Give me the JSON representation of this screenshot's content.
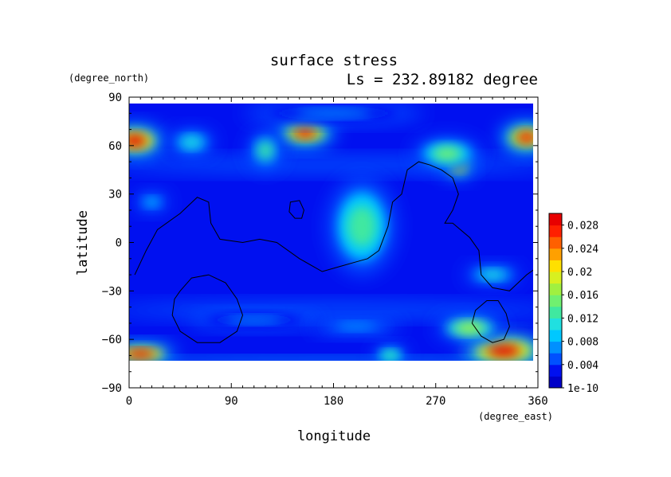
{
  "chart_data": {
    "type": "heatmap",
    "title": "surface stress",
    "subtitle": "Ls = 232.89182 degree",
    "xlabel": "longitude",
    "ylabel": "latitude",
    "x_unit": "(degree_east)",
    "y_unit": "(degree_north)",
    "xlim": [
      0,
      360
    ],
    "ylim": [
      -90,
      90
    ],
    "x_ticks": [
      "0",
      "90",
      "180",
      "270",
      "360"
    ],
    "y_ticks": [
      "90",
      "60",
      "30",
      "0",
      "−30",
      "−60",
      "−90"
    ],
    "x_tick_values": [
      0,
      90,
      180,
      270,
      360
    ],
    "y_tick_values": [
      90,
      60,
      30,
      0,
      -30,
      -60,
      -90
    ],
    "colorbar": {
      "labels": [
        "0.028",
        "0.024",
        "0.02",
        "0.016",
        "0.012",
        "0.008",
        "0.004",
        "1e-10"
      ],
      "label_values": [
        0.028,
        0.024,
        0.02,
        0.016,
        0.012,
        0.008,
        0.004,
        0
      ],
      "vmin": 0,
      "vmax": 0.03,
      "colors": [
        "#0000c8",
        "#0010f0",
        "#0050ff",
        "#0090ff",
        "#00c8ff",
        "#20e0e0",
        "#40e8a0",
        "#70f070",
        "#a0f040",
        "#d8f020",
        "#ffe000",
        "#ffa000",
        "#ff6000",
        "#ff2000",
        "#e80000"
      ]
    },
    "hotspots": [
      {
        "lon": 5,
        "lat": 63,
        "value": 0.028,
        "rx": 25,
        "ry": 9
      },
      {
        "lon": 155,
        "lat": 68,
        "value": 0.026,
        "rx": 25,
        "ry": 8
      },
      {
        "lon": 290,
        "lat": 48,
        "value": 0.022,
        "rx": 12,
        "ry": 8
      },
      {
        "lon": 350,
        "lat": 65,
        "value": 0.027,
        "rx": 22,
        "ry": 9
      },
      {
        "lon": 330,
        "lat": -67,
        "value": 0.03,
        "rx": 35,
        "ry": 9
      },
      {
        "lon": 10,
        "lat": -69,
        "value": 0.028,
        "rx": 30,
        "ry": 6
      },
      {
        "lon": 300,
        "lat": -53,
        "value": 0.016,
        "rx": 30,
        "ry": 8
      },
      {
        "lon": 205,
        "lat": 10,
        "value": 0.013,
        "rx": 30,
        "ry": 30
      },
      {
        "lon": 280,
        "lat": 55,
        "value": 0.014,
        "rx": 30,
        "ry": 10
      },
      {
        "lon": 230,
        "lat": -70,
        "value": 0.013,
        "rx": 15,
        "ry": 6
      },
      {
        "lon": 120,
        "lat": 57,
        "value": 0.012,
        "rx": 15,
        "ry": 12
      },
      {
        "lon": 55,
        "lat": 62,
        "value": 0.01,
        "rx": 20,
        "ry": 8
      },
      {
        "lon": 20,
        "lat": 25,
        "value": 0.008,
        "rx": 15,
        "ry": 6
      },
      {
        "lon": 320,
        "lat": -20,
        "value": 0.01,
        "rx": 25,
        "ry": 6
      },
      {
        "lon": 110,
        "lat": -48,
        "value": 0.006,
        "rx": 60,
        "ry": 5
      },
      {
        "lon": 200,
        "lat": -52,
        "value": 0.007,
        "rx": 40,
        "ry": 5
      },
      {
        "lon": 180,
        "lat": 80,
        "value": 0.006,
        "rx": 80,
        "ry": 6
      }
    ],
    "contours": [
      {
        "name": "tharsis-contour",
        "closed": false,
        "points": [
          [
            5,
            -20
          ],
          [
            15,
            -5
          ],
          [
            25,
            8
          ],
          [
            45,
            18
          ],
          [
            60,
            28
          ],
          [
            70,
            25
          ],
          [
            72,
            12
          ],
          [
            80,
            2
          ],
          [
            100,
            0
          ],
          [
            115,
            2
          ],
          [
            130,
            0
          ],
          [
            150,
            -10
          ],
          [
            170,
            -18
          ],
          [
            185,
            -15
          ],
          [
            200,
            -12
          ],
          [
            210,
            -10
          ],
          [
            220,
            -5
          ],
          [
            228,
            10
          ],
          [
            232,
            25
          ],
          [
            240,
            30
          ],
          [
            245,
            45
          ],
          [
            255,
            50
          ],
          [
            265,
            48
          ],
          [
            275,
            45
          ],
          [
            285,
            40
          ],
          [
            290,
            30
          ],
          [
            285,
            20
          ],
          [
            278,
            12
          ],
          [
            285,
            12
          ],
          [
            300,
            3
          ],
          [
            308,
            -5
          ],
          [
            310,
            -20
          ],
          [
            320,
            -28
          ],
          [
            335,
            -30
          ],
          [
            350,
            -20
          ],
          [
            360,
            -15
          ]
        ]
      },
      {
        "name": "hellas-contour",
        "closed": true,
        "points": [
          [
            45,
            -30
          ],
          [
            55,
            -22
          ],
          [
            70,
            -20
          ],
          [
            85,
            -25
          ],
          [
            95,
            -35
          ],
          [
            100,
            -45
          ],
          [
            95,
            -55
          ],
          [
            80,
            -62
          ],
          [
            60,
            -62
          ],
          [
            45,
            -55
          ],
          [
            38,
            -45
          ],
          [
            40,
            -35
          ]
        ]
      },
      {
        "name": "argyre-contour",
        "closed": true,
        "points": [
          [
            305,
            -42
          ],
          [
            315,
            -36
          ],
          [
            325,
            -36
          ],
          [
            332,
            -44
          ],
          [
            335,
            -52
          ],
          [
            330,
            -60
          ],
          [
            320,
            -62
          ],
          [
            310,
            -58
          ],
          [
            302,
            -50
          ]
        ]
      },
      {
        "name": "elysium-contour",
        "closed": true,
        "points": [
          [
            142,
            25
          ],
          [
            150,
            26
          ],
          [
            154,
            20
          ],
          [
            152,
            15
          ],
          [
            146,
            15
          ],
          [
            141,
            19
          ]
        ]
      }
    ]
  }
}
